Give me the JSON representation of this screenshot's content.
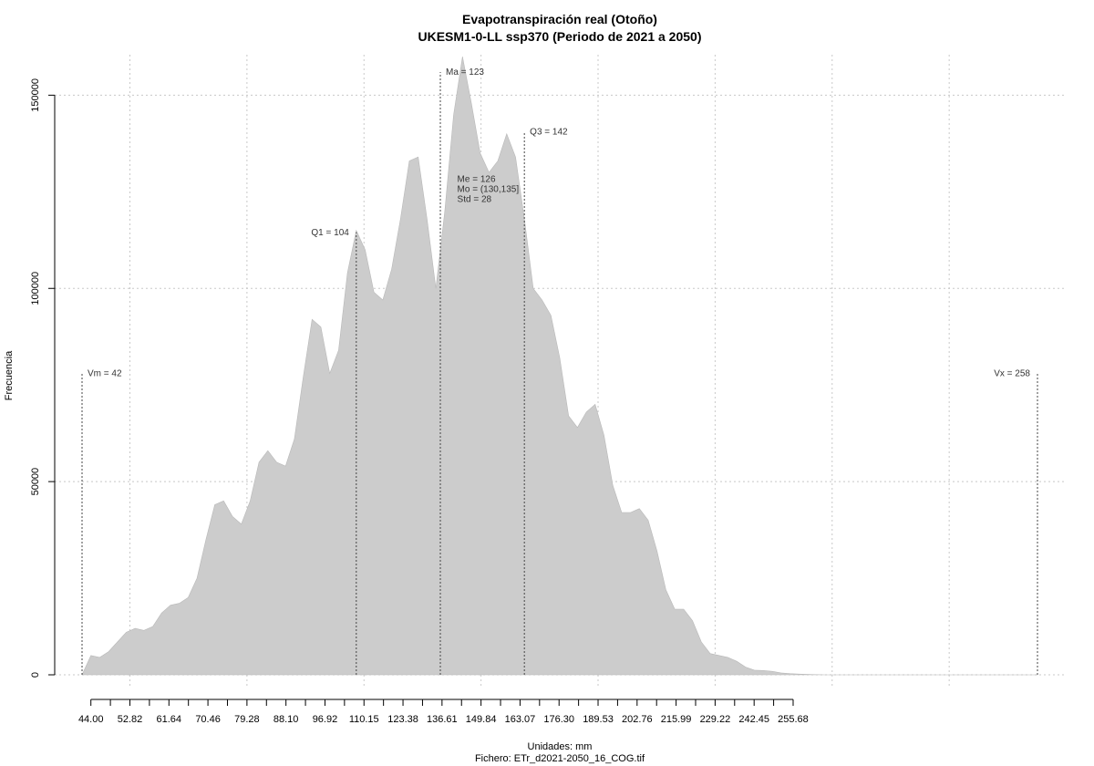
{
  "chart_data": {
    "type": "area",
    "title": "Evapotranspiración real (Otoño)",
    "subtitle": "UKESM1-0-LL ssp370 (Periodo de 2021 a 2050)",
    "xlabel": "Unidades: mm",
    "ylabel": "Frecuencia",
    "footer": "Fichero: ETr_d2021-2050_16_COG.tif",
    "fill_color": "#cccccc",
    "grid": true,
    "xlim": [
      42,
      258
    ],
    "ylim": [
      0,
      160000
    ],
    "x_tick_labels": [
      "44.00",
      "52.82",
      "61.64",
      "70.46",
      "79.28",
      "88.10",
      "96.92",
      "110.15",
      "123.38",
      "136.61",
      "149.84",
      "163.07",
      "176.30",
      "189.53",
      "202.76",
      "215.99",
      "229.22",
      "242.45",
      "255.68"
    ],
    "y_ticks": [
      0,
      50000,
      100000,
      150000
    ],
    "y_tick_labels": [
      "0",
      "50000",
      "100000",
      "150000"
    ],
    "x": [
      42,
      44,
      46,
      48,
      50,
      52,
      54,
      56,
      58,
      60,
      62,
      64,
      66,
      68,
      70,
      72,
      74,
      76,
      78,
      80,
      82,
      84,
      86,
      88,
      90,
      92,
      94,
      96,
      98,
      100,
      102,
      104,
      106,
      108,
      110,
      112,
      114,
      116,
      118,
      120,
      122,
      124,
      126,
      128,
      130,
      132,
      134,
      136,
      138,
      140,
      142,
      144,
      146,
      148,
      150,
      152,
      154,
      156,
      158,
      160,
      162,
      164,
      166,
      168,
      170,
      172,
      174,
      176,
      178,
      180,
      182,
      184,
      186,
      188,
      190,
      192,
      194,
      196,
      198,
      200,
      202,
      204,
      206,
      208,
      210,
      212,
      214,
      216,
      220,
      225,
      230,
      235,
      240,
      245,
      250,
      255,
      258
    ],
    "y": [
      0,
      5000,
      4500,
      6000,
      8500,
      11000,
      12000,
      11500,
      12500,
      16000,
      18000,
      18500,
      20000,
      25000,
      35000,
      44000,
      45000,
      41000,
      39000,
      45000,
      55000,
      58000,
      55000,
      54000,
      61000,
      77000,
      92000,
      90000,
      78000,
      84000,
      104000,
      115000,
      110000,
      99000,
      97000,
      105000,
      118000,
      133000,
      134000,
      118000,
      100000,
      120000,
      145000,
      160000,
      148000,
      135000,
      130000,
      133000,
      140000,
      134000,
      118000,
      100000,
      97000,
      93000,
      82000,
      67000,
      64000,
      68000,
      70000,
      62000,
      49000,
      42000,
      42000,
      43000,
      40000,
      32000,
      22000,
      17000,
      17000,
      14000,
      8500,
      5500,
      5000,
      4500,
      3500,
      2000,
      1200,
      1100,
      900,
      500,
      300,
      200,
      100,
      50,
      0,
      0,
      0,
      0,
      0,
      0,
      0,
      0,
      0,
      0,
      0,
      0,
      0
    ],
    "markers": [
      {
        "label": "Vm = 42",
        "x": 42
      },
      {
        "label": "Q1 = 104",
        "x": 104
      },
      {
        "label": "Ma = 123",
        "x": 123
      },
      {
        "label": "Q3 = 142",
        "x": 142
      },
      {
        "label": "Vx = 258",
        "x": 258
      }
    ],
    "stats": [
      "Me = 126",
      "Mo = (130,135]",
      "Std = 28"
    ]
  }
}
